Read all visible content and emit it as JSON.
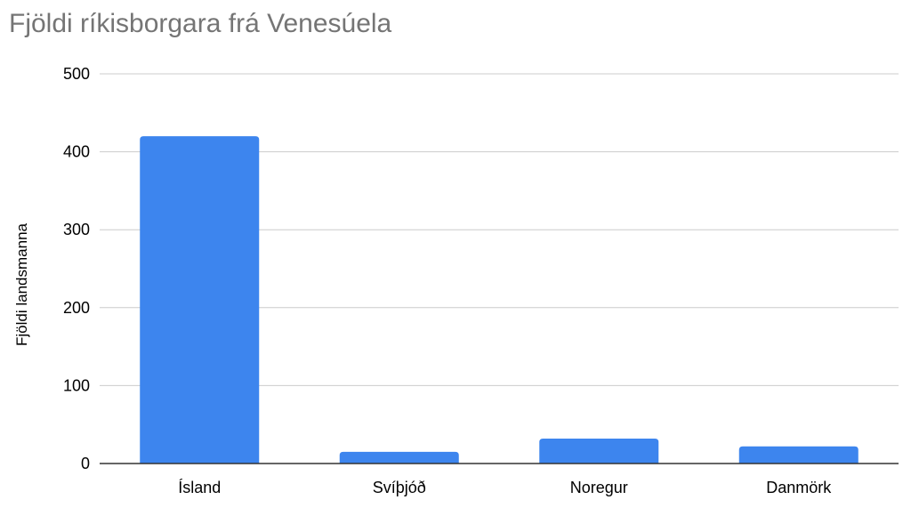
{
  "chart_data": {
    "type": "bar",
    "title": "Fjöldi ríkisborgara frá Venesúela",
    "xlabel": "",
    "ylabel": "Fjöldi landsmanna",
    "categories": [
      "Ísland",
      "Svíþjóð",
      "Noregur",
      "Danmörk"
    ],
    "values": [
      420,
      15,
      32,
      22
    ],
    "ylim": [
      0,
      500
    ],
    "yticks": [
      0,
      100,
      200,
      300,
      400,
      500
    ],
    "grid": true,
    "legend": "none",
    "bar_color": "#3d85ee"
  }
}
